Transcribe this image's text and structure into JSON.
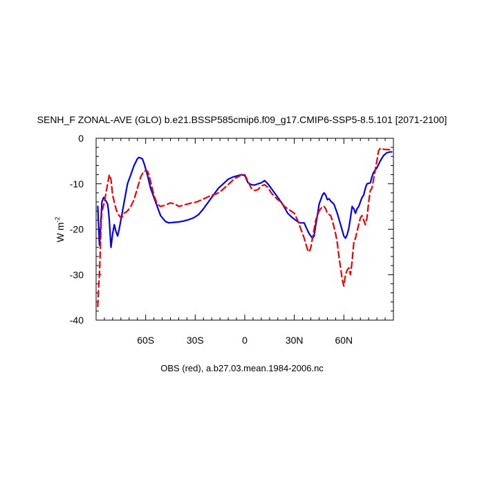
{
  "chart_data": {
    "type": "line",
    "title": "SENH_F ZONAL-AVE (GLO) b.e21.BSSP585cmip6.f09_g17.CMIP6-SSP5-8.5.101 [2071-2100]",
    "xlabel": "",
    "ylabel": "W m",
    "ylabel_superscript": "-2",
    "caption": "OBS (red), a.b27.03.mean.1984-2006.nc",
    "xlim": [
      -90,
      90
    ],
    "ylim": [
      -40,
      0
    ],
    "grid": false,
    "xticks": [
      {
        "value": -60,
        "label": "60S"
      },
      {
        "value": -30,
        "label": "30S"
      },
      {
        "value": 0,
        "label": "0"
      },
      {
        "value": 30,
        "label": "30N"
      },
      {
        "value": 60,
        "label": "60N"
      }
    ],
    "yticks": [
      {
        "value": 0,
        "label": "0"
      },
      {
        "value": -10,
        "label": "-10"
      },
      {
        "value": -20,
        "label": "-20"
      },
      {
        "value": -30,
        "label": "-30"
      },
      {
        "value": -40,
        "label": "-40"
      }
    ],
    "series": [
      {
        "color": "#0000ee",
        "dash": "solid",
        "points": [
          [
            -89,
            -15
          ],
          [
            -88,
            -23.5
          ],
          [
            -87.5,
            -21
          ],
          [
            -86.5,
            -14
          ],
          [
            -85.5,
            -13
          ],
          [
            -84.5,
            -13.5
          ],
          [
            -84,
            -13.8
          ],
          [
            -83,
            -14.5
          ],
          [
            -82.5,
            -16
          ],
          [
            -82,
            -18
          ],
          [
            -81,
            -24
          ],
          [
            -80,
            -21
          ],
          [
            -79,
            -19
          ],
          [
            -78,
            -20.5
          ],
          [
            -77,
            -21.5
          ],
          [
            -76,
            -20
          ],
          [
            -75,
            -18
          ],
          [
            -73,
            -14
          ],
          [
            -71,
            -10
          ],
          [
            -69,
            -8
          ],
          [
            -67,
            -6
          ],
          [
            -65,
            -4.5
          ],
          [
            -64,
            -4.2
          ],
          [
            -62,
            -4.5
          ],
          [
            -61,
            -5.5
          ],
          [
            -59,
            -8
          ],
          [
            -57,
            -11
          ],
          [
            -54,
            -14
          ],
          [
            -51,
            -17
          ],
          [
            -48,
            -18.3
          ],
          [
            -46,
            -18.6
          ],
          [
            -43,
            -18.5
          ],
          [
            -40,
            -18.4
          ],
          [
            -37,
            -18.2
          ],
          [
            -34,
            -17.9
          ],
          [
            -31,
            -17.5
          ],
          [
            -28,
            -16.8
          ],
          [
            -25,
            -15.5
          ],
          [
            -22,
            -14
          ],
          [
            -19,
            -12.5
          ],
          [
            -16,
            -11
          ],
          [
            -13,
            -10
          ],
          [
            -10,
            -9
          ],
          [
            -7,
            -8.5
          ],
          [
            -4,
            -8.2
          ],
          [
            -2,
            -8
          ],
          [
            0,
            -8.2
          ],
          [
            1,
            -9
          ],
          [
            2,
            -9.8
          ],
          [
            4,
            -10.2
          ],
          [
            6,
            -10.3
          ],
          [
            8,
            -10
          ],
          [
            10,
            -9.8
          ],
          [
            12,
            -9.3
          ],
          [
            14,
            -10
          ],
          [
            16,
            -11
          ],
          [
            18,
            -12
          ],
          [
            20,
            -13
          ],
          [
            22,
            -14
          ],
          [
            24,
            -15.2
          ],
          [
            26,
            -16.5
          ],
          [
            28,
            -17.2
          ],
          [
            30,
            -17.8
          ],
          [
            32,
            -18.3
          ],
          [
            33,
            -18.6
          ],
          [
            36,
            -18.6
          ],
          [
            37,
            -19.5
          ],
          [
            39,
            -21
          ],
          [
            41,
            -22
          ],
          [
            42,
            -21.5
          ],
          [
            43,
            -19
          ],
          [
            44,
            -17
          ],
          [
            45,
            -14.5
          ],
          [
            47,
            -12.5
          ],
          [
            48,
            -12
          ],
          [
            49,
            -12.5
          ],
          [
            50,
            -13.5
          ],
          [
            51,
            -13.3
          ],
          [
            52,
            -13.8
          ],
          [
            54,
            -14.5
          ],
          [
            56,
            -16.5
          ],
          [
            58,
            -19
          ],
          [
            60,
            -21.5
          ],
          [
            61,
            -22
          ],
          [
            62,
            -21.2
          ],
          [
            63,
            -19.8
          ],
          [
            64,
            -17.5
          ],
          [
            65,
            -15
          ],
          [
            66,
            -15.5
          ],
          [
            67,
            -16.5
          ],
          [
            68,
            -15.5
          ],
          [
            69,
            -15
          ],
          [
            70,
            -14
          ],
          [
            71,
            -13
          ],
          [
            72,
            -12.5
          ],
          [
            73,
            -11
          ],
          [
            74,
            -10
          ],
          [
            76,
            -9.8
          ],
          [
            77,
            -8.5
          ],
          [
            78,
            -7.5
          ],
          [
            80,
            -6.5
          ],
          [
            82,
            -5
          ],
          [
            84,
            -3.8
          ],
          [
            86,
            -3.2
          ],
          [
            88,
            -3
          ],
          [
            89,
            -3
          ]
        ]
      },
      {
        "color": "#ee0000",
        "dash": "dashed",
        "points": [
          [
            -89,
            -37
          ],
          [
            -88.5,
            -33
          ],
          [
            -88,
            -30
          ],
          [
            -87.5,
            -25
          ],
          [
            -87,
            -19
          ],
          [
            -86.5,
            -16
          ],
          [
            -86,
            -15.5
          ],
          [
            -85,
            -14
          ],
          [
            -84,
            -12
          ],
          [
            -83,
            -10
          ],
          [
            -82,
            -8
          ],
          [
            -81,
            -9
          ],
          [
            -80,
            -12.5
          ],
          [
            -79,
            -14
          ],
          [
            -78,
            -15.5
          ],
          [
            -77,
            -16.5
          ],
          [
            -76,
            -17
          ],
          [
            -75,
            -17.5
          ],
          [
            -74,
            -17.2
          ],
          [
            -73,
            -16.5
          ],
          [
            -71,
            -16
          ],
          [
            -69,
            -15
          ],
          [
            -67,
            -13.5
          ],
          [
            -65,
            -11
          ],
          [
            -63,
            -8.5
          ],
          [
            -61,
            -7.2
          ],
          [
            -59,
            -7.2
          ],
          [
            -58,
            -8
          ],
          [
            -57,
            -9.5
          ],
          [
            -55,
            -12.5
          ],
          [
            -53,
            -14.5
          ],
          [
            -51,
            -15
          ],
          [
            -48,
            -14.7
          ],
          [
            -45,
            -14.2
          ],
          [
            -42,
            -14.5
          ],
          [
            -40,
            -15
          ],
          [
            -38,
            -14.8
          ],
          [
            -35,
            -14.5
          ],
          [
            -32,
            -14.2
          ],
          [
            -29,
            -14
          ],
          [
            -26,
            -13.5
          ],
          [
            -23,
            -13
          ],
          [
            -20,
            -12.5
          ],
          [
            -17,
            -12.2
          ],
          [
            -14,
            -11.5
          ],
          [
            -11,
            -10.5
          ],
          [
            -8,
            -9.5
          ],
          [
            -6,
            -8.8
          ],
          [
            -4,
            -8.5
          ],
          [
            -2,
            -8
          ],
          [
            0,
            -8
          ],
          [
            2,
            -9.5
          ],
          [
            4,
            -11
          ],
          [
            6,
            -11.5
          ],
          [
            8,
            -11.3
          ],
          [
            10,
            -10.5
          ],
          [
            12,
            -10.2
          ],
          [
            14,
            -10.8
          ],
          [
            16,
            -12
          ],
          [
            18,
            -12.8
          ],
          [
            20,
            -13.5
          ],
          [
            22,
            -14
          ],
          [
            24,
            -15
          ],
          [
            26,
            -15.5
          ],
          [
            28,
            -16
          ],
          [
            30,
            -16.5
          ],
          [
            32,
            -18
          ],
          [
            34,
            -20
          ],
          [
            36,
            -22
          ],
          [
            38,
            -24.5
          ],
          [
            39,
            -25
          ],
          [
            40,
            -24
          ],
          [
            41,
            -22
          ],
          [
            42,
            -20
          ],
          [
            43,
            -18
          ],
          [
            44,
            -17
          ],
          [
            45,
            -16
          ],
          [
            46,
            -15.5
          ],
          [
            47,
            -15
          ],
          [
            48,
            -15
          ],
          [
            49,
            -15.5
          ],
          [
            50,
            -16.5
          ],
          [
            52,
            -17
          ],
          [
            53,
            -18
          ],
          [
            54,
            -19.5
          ],
          [
            55,
            -21
          ],
          [
            56,
            -23
          ],
          [
            57,
            -26
          ],
          [
            58,
            -28.5
          ],
          [
            59,
            -31
          ],
          [
            60,
            -32.5
          ],
          [
            61,
            -30
          ],
          [
            62,
            -29
          ],
          [
            63,
            -28.5
          ],
          [
            64,
            -30
          ],
          [
            65,
            -27
          ],
          [
            66,
            -23
          ],
          [
            67,
            -22
          ],
          [
            68,
            -20.5
          ],
          [
            69,
            -19
          ],
          [
            70,
            -17.5
          ],
          [
            71,
            -17
          ],
          [
            72,
            -18
          ],
          [
            73,
            -19
          ],
          [
            74,
            -17.5
          ],
          [
            75,
            -14
          ],
          [
            76,
            -11.5
          ],
          [
            77,
            -11
          ],
          [
            78,
            -9
          ],
          [
            79,
            -7
          ],
          [
            80,
            -5
          ],
          [
            81,
            -2.8
          ],
          [
            82,
            -2.2
          ],
          [
            84,
            -2.4
          ],
          [
            86,
            -2.5
          ],
          [
            88,
            -2.5
          ],
          [
            89,
            -2.5
          ]
        ]
      }
    ]
  }
}
